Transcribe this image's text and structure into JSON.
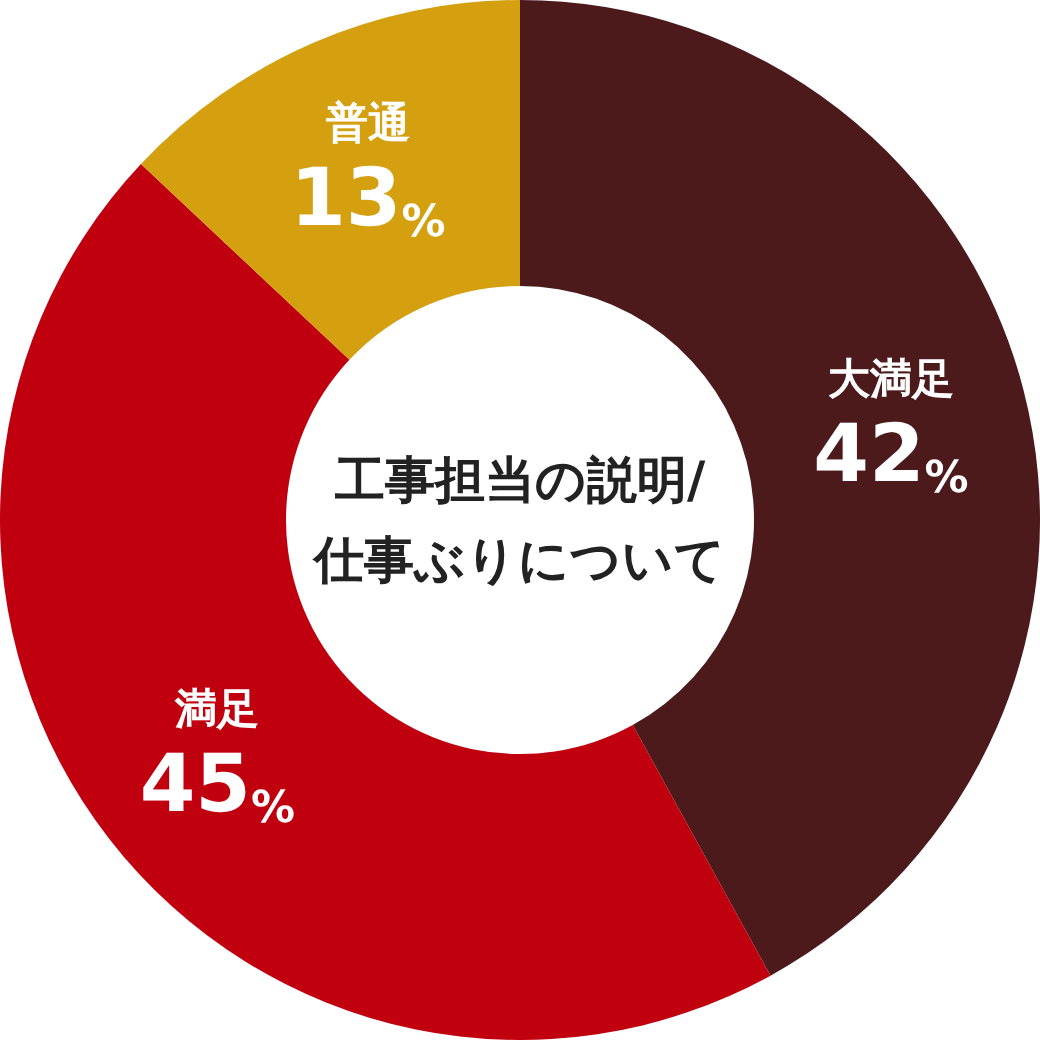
{
  "chart_data": {
    "type": "donut",
    "title": "工事担当の説明/\n仕事ぶりについて",
    "categories": [
      "大満足",
      "満足",
      "普通"
    ],
    "values": [
      42,
      45,
      13
    ],
    "colors": [
      "#4d1a1c",
      "#c0000f",
      "#d4a00f"
    ],
    "value_labels": [
      "42%",
      "45%",
      "13%"
    ],
    "legend": false
  }
}
